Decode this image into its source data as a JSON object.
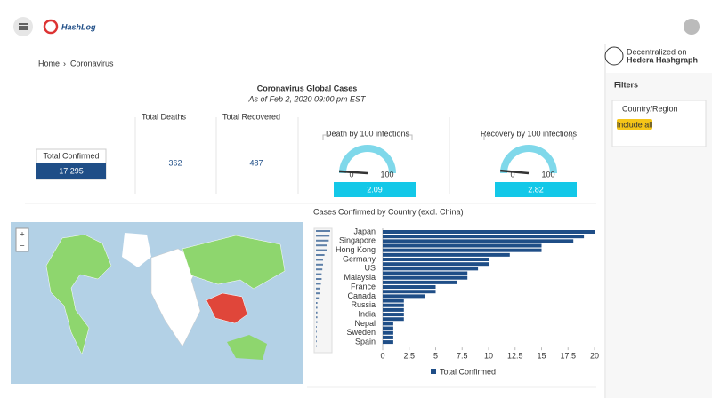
{
  "app": {
    "name": "HashLog"
  },
  "breadcrumb": [
    "Home",
    "Coronavirus"
  ],
  "header": {
    "title": "Coronavirus Global Cases",
    "subtitle": "As of Feb 2, 2020 09:00 pm EST"
  },
  "kpis": [
    {
      "label": "Total Confirmed",
      "value": "17,295"
    },
    {
      "label": "Total Deaths",
      "value": "362"
    },
    {
      "label": "Total Recovered",
      "value": "487"
    }
  ],
  "gauges": [
    {
      "title": "Death by 100 infections",
      "value": 2.09,
      "min": 0,
      "max": 100
    },
    {
      "title": "Recovery by 100 infections",
      "value": 2.82,
      "min": 0,
      "max": 100
    }
  ],
  "map": {
    "zoom_in": "+",
    "zoom_out": "−"
  },
  "sidebar": {
    "brand_line1": "Decentralized on",
    "brand_line2": "Hedera Hashgraph",
    "filters": "Filters",
    "filter_field": "Country/Region",
    "chip": "Include all"
  },
  "chart_data": {
    "type": "hbar",
    "title": "Cases Confirmed by Country (excl. China)",
    "categories": [
      "Japan",
      null,
      "Singapore",
      null,
      "Hong Kong",
      null,
      "Germany",
      null,
      "US",
      null,
      "Malaysia",
      null,
      "France",
      null,
      "Canada",
      null,
      "Russia",
      null,
      "India",
      null,
      "Nepal",
      null,
      "Sweden",
      null,
      "Spain"
    ],
    "series": [
      {
        "name": "Total Confirmed",
        "color": "#1f4e87",
        "values": [
          20,
          19,
          18,
          15,
          15,
          12,
          10,
          10,
          9,
          8,
          8,
          7,
          5,
          5,
          4,
          2,
          2,
          2,
          2,
          2,
          1,
          1,
          1,
          1,
          1
        ]
      }
    ],
    "xlim": [
      0,
      20
    ],
    "xticks": [
      0,
      2.5,
      5,
      7.5,
      10,
      12.5,
      15,
      17.5,
      20
    ],
    "legend": "bottom"
  }
}
